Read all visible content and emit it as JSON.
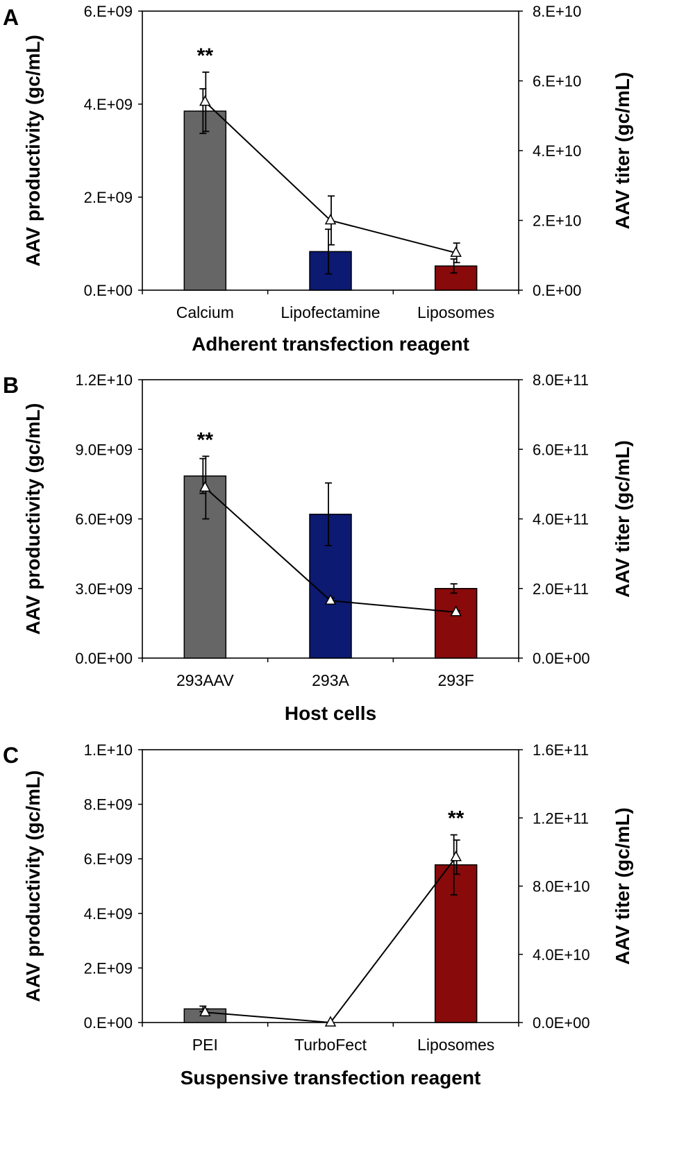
{
  "chart_data": [
    {
      "type": "bar",
      "panel_label": "A",
      "xlabel": "Adherent transfection reagent",
      "ylabel": "AAV productivity (gc/mL)",
      "y2label": "AAV titer (gc/mL)",
      "categories": [
        "Calcium",
        "Lipofectamine",
        "Liposomes"
      ],
      "bar_colors": [
        "#666666",
        "#0c1a72",
        "#880a0a"
      ],
      "ylim": [
        0,
        6000000000
      ],
      "y_ticks": [
        0,
        2000000000,
        4000000000,
        6000000000
      ],
      "y_tick_labels": [
        "0.E+00",
        "2.E+09",
        "4.E+09",
        "6.E+09"
      ],
      "y2lim": [
        0,
        80000000000
      ],
      "y2_ticks": [
        0,
        20000000000,
        40000000000,
        60000000000,
        80000000000
      ],
      "y2_tick_labels": [
        "0.E+00",
        "2.E+10",
        "4.E+10",
        "6.E+10",
        "8.E+10"
      ],
      "series": [
        {
          "name": "AAV productivity",
          "axis": "left",
          "kind": "bar",
          "values": [
            3850000000,
            830000000,
            520000000
          ],
          "errors": [
            480000000,
            480000000,
            150000000
          ]
        },
        {
          "name": "AAV titer",
          "axis": "right",
          "kind": "line",
          "values": [
            54000000000,
            20000000000,
            10700000000
          ],
          "errors": [
            8500000000,
            7000000000,
            2800000000
          ]
        }
      ],
      "annotations": [
        {
          "category": "Calcium",
          "text": "**"
        }
      ]
    },
    {
      "type": "bar",
      "panel_label": "B",
      "xlabel": "Host cells",
      "ylabel": "AAV productivity (gc/mL)",
      "y2label": "AAV titer (gc/mL)",
      "categories": [
        "293AAV",
        "293A",
        "293F"
      ],
      "bar_colors": [
        "#666666",
        "#0c1a72",
        "#880a0a"
      ],
      "ylim": [
        0,
        12000000000
      ],
      "y_ticks": [
        0,
        3000000000,
        6000000000,
        9000000000,
        12000000000
      ],
      "y_tick_labels": [
        "0.0E+00",
        "3.0E+09",
        "6.0E+09",
        "9.0E+09",
        "1.2E+10"
      ],
      "y2lim": [
        0,
        800000000000
      ],
      "y2_ticks": [
        0,
        200000000000,
        400000000000,
        600000000000,
        800000000000
      ],
      "y2_tick_labels": [
        "0.0E+00",
        "2.0E+11",
        "4.0E+11",
        "6.0E+11",
        "8.0E+11"
      ],
      "series": [
        {
          "name": "AAV productivity",
          "axis": "left",
          "kind": "bar",
          "values": [
            7850000000,
            6200000000,
            3000000000
          ],
          "errors": [
            750000000,
            1350000000,
            200000000
          ]
        },
        {
          "name": "AAV titer",
          "axis": "right",
          "kind": "line",
          "values": [
            490000000000,
            165000000000,
            132000000000
          ],
          "errors": [
            90000000000,
            8000000000,
            4000000000
          ]
        }
      ],
      "annotations": [
        {
          "category": "293AAV",
          "text": "**"
        }
      ]
    },
    {
      "type": "bar",
      "panel_label": "C",
      "xlabel": "Suspensive transfection reagent",
      "ylabel": "AAV productivity (gc/mL)",
      "y2label": "AAV titer (gc/mL)",
      "categories": [
        "PEI",
        "TurboFect",
        "Liposomes"
      ],
      "bar_colors": [
        "#666666",
        "#0c1a72",
        "#880a0a"
      ],
      "ylim": [
        0,
        10000000000
      ],
      "y_ticks": [
        0,
        2000000000,
        4000000000,
        6000000000,
        8000000000,
        10000000000
      ],
      "y_tick_labels": [
        "0.E+00",
        "2.E+09",
        "4.E+09",
        "6.E+09",
        "8.E+09",
        "1.E+10"
      ],
      "y2lim": [
        0,
        160000000000
      ],
      "y2_ticks": [
        0,
        40000000000,
        80000000000,
        120000000000,
        160000000000
      ],
      "y2_tick_labels": [
        "0.0E+00",
        "4.0E+10",
        "8.0E+10",
        "1.2E+11",
        "1.6E+11"
      ],
      "series": [
        {
          "name": "AAV productivity",
          "axis": "left",
          "kind": "bar",
          "values": [
            500000000,
            0,
            5780000000
          ],
          "errors": [
            100000000,
            0,
            1100000000
          ]
        },
        {
          "name": "AAV titer",
          "axis": "right",
          "kind": "line",
          "values": [
            6000000000,
            0,
            97000000000
          ],
          "errors": [
            2000000000,
            0,
            10000000000
          ]
        }
      ],
      "annotations": [
        {
          "category": "Liposomes",
          "text": "**"
        }
      ]
    }
  ]
}
